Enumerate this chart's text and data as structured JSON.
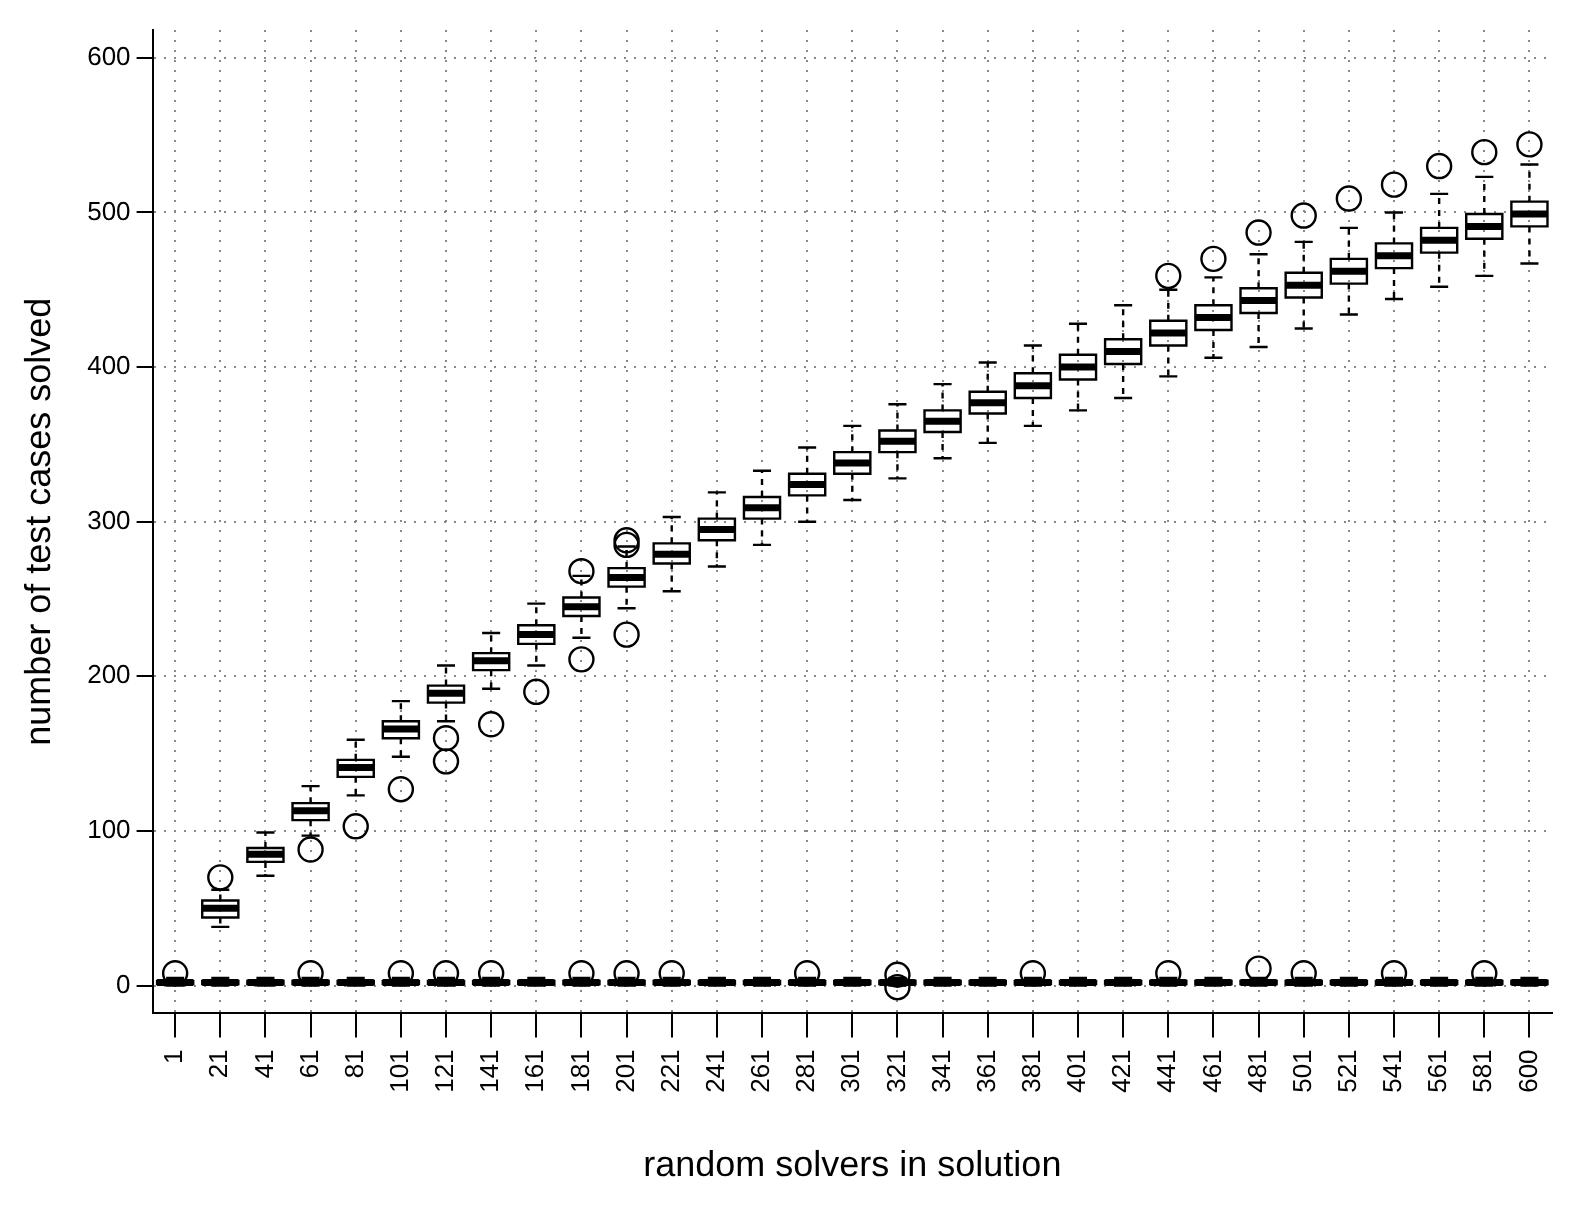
{
  "chart_data": {
    "type": "box",
    "xlabel": "random solvers in solution",
    "ylabel": "number of test cases solved",
    "categories": [
      "1",
      "21",
      "41",
      "61",
      "81",
      "101",
      "121",
      "141",
      "161",
      "181",
      "201",
      "221",
      "241",
      "261",
      "281",
      "301",
      "321",
      "341",
      "361",
      "381",
      "401",
      "421",
      "441",
      "461",
      "481",
      "501",
      "521",
      "541",
      "561",
      "581",
      "600"
    ],
    "ylim": [
      -18,
      618
    ],
    "yticks": [
      0,
      100,
      200,
      300,
      400,
      500,
      600
    ],
    "grid": true,
    "series": [
      {
        "color": "#000000",
        "boxes": [
          {
            "low": 0,
            "q1": 1,
            "median": 2,
            "q3": 3,
            "high": 5,
            "outliers": [
              8
            ]
          },
          {
            "low": 0,
            "q1": 1,
            "median": 2,
            "q3": 3,
            "high": 5
          },
          {
            "low": 0,
            "q1": 1,
            "median": 2,
            "q3": 3,
            "high": 5
          },
          {
            "low": 0,
            "q1": 1,
            "median": 2,
            "q3": 3,
            "high": 5,
            "outliers": [
              8
            ]
          },
          {
            "low": 0,
            "q1": 1,
            "median": 2,
            "q3": 3,
            "high": 5
          },
          {
            "low": 0,
            "q1": 1,
            "median": 2,
            "q3": 3,
            "high": 5,
            "outliers": [
              8
            ]
          },
          {
            "low": 0,
            "q1": 1,
            "median": 2,
            "q3": 3,
            "high": 5,
            "outliers": [
              8
            ]
          },
          {
            "low": 0,
            "q1": 1,
            "median": 2,
            "q3": 3,
            "high": 5,
            "outliers": [
              8
            ]
          },
          {
            "low": 0,
            "q1": 1,
            "median": 2,
            "q3": 3,
            "high": 5
          },
          {
            "low": 0,
            "q1": 1,
            "median": 2,
            "q3": 3,
            "high": 5,
            "outliers": [
              8
            ]
          },
          {
            "low": 0,
            "q1": 1,
            "median": 2,
            "q3": 3,
            "high": 5,
            "outliers": [
              8
            ]
          },
          {
            "low": 0,
            "q1": 1,
            "median": 2,
            "q3": 3,
            "high": 5,
            "outliers": [
              8
            ]
          },
          {
            "low": 0,
            "q1": 1,
            "median": 2,
            "q3": 3,
            "high": 5
          },
          {
            "low": 0,
            "q1": 1,
            "median": 2,
            "q3": 3,
            "high": 5
          },
          {
            "low": 0,
            "q1": 1,
            "median": 2,
            "q3": 3,
            "high": 5,
            "outliers": [
              8
            ]
          },
          {
            "low": 0,
            "q1": 1,
            "median": 2,
            "q3": 3,
            "high": 5
          },
          {
            "low": 0,
            "q1": 1,
            "median": 2,
            "q3": 3,
            "high": 5,
            "outliers": [
              -1,
              7
            ]
          },
          {
            "low": 0,
            "q1": 1,
            "median": 2,
            "q3": 3,
            "high": 5
          },
          {
            "low": 0,
            "q1": 1,
            "median": 2,
            "q3": 3,
            "high": 5
          },
          {
            "low": 0,
            "q1": 1,
            "median": 2,
            "q3": 3,
            "high": 5,
            "outliers": [
              8
            ]
          },
          {
            "low": 0,
            "q1": 1,
            "median": 2,
            "q3": 3,
            "high": 5
          },
          {
            "low": 0,
            "q1": 1,
            "median": 2,
            "q3": 3,
            "high": 5
          },
          {
            "low": 0,
            "q1": 1,
            "median": 2,
            "q3": 3,
            "high": 5,
            "outliers": [
              8
            ]
          },
          {
            "low": 0,
            "q1": 1,
            "median": 2,
            "q3": 3,
            "high": 5
          },
          {
            "low": 0,
            "q1": 1,
            "median": 2,
            "q3": 3,
            "high": 5,
            "outliers": [
              11
            ]
          },
          {
            "low": 0,
            "q1": 1,
            "median": 2,
            "q3": 3,
            "high": 5,
            "outliers": [
              8
            ]
          },
          {
            "low": 0,
            "q1": 1,
            "median": 2,
            "q3": 3,
            "high": 5
          },
          {
            "low": 0,
            "q1": 1,
            "median": 2,
            "q3": 3,
            "high": 5,
            "outliers": [
              8
            ]
          },
          {
            "low": 0,
            "q1": 1,
            "median": 2,
            "q3": 3,
            "high": 5
          },
          {
            "low": 0,
            "q1": 1,
            "median": 2,
            "q3": 3,
            "high": 5,
            "outliers": [
              8
            ]
          },
          {
            "low": 0,
            "q1": 1,
            "median": 2,
            "q3": 3,
            "high": 5
          }
        ]
      },
      {
        "color": "#000000",
        "boxes": [
          null,
          {
            "low": 38,
            "q1": 44,
            "median": 50,
            "q3": 55,
            "high": 62,
            "outliers": [
              70
            ]
          },
          {
            "low": 71,
            "q1": 80,
            "median": 85,
            "q3": 89,
            "high": 99
          },
          {
            "low": 97,
            "q1": 107,
            "median": 113,
            "q3": 118,
            "high": 129,
            "outliers": [
              88
            ]
          },
          {
            "low": 123,
            "q1": 135,
            "median": 141,
            "q3": 146,
            "high": 159,
            "outliers": [
              103
            ]
          },
          {
            "low": 148,
            "q1": 160,
            "median": 166,
            "q3": 171,
            "high": 184,
            "outliers": [
              127
            ]
          },
          {
            "low": 171,
            "q1": 183,
            "median": 189,
            "q3": 194,
            "high": 207,
            "outliers": [
              145,
              160
            ]
          },
          {
            "low": 192,
            "q1": 204,
            "median": 210,
            "q3": 215,
            "high": 228,
            "outliers": [
              169
            ]
          },
          {
            "low": 207,
            "q1": 221,
            "median": 227,
            "q3": 233,
            "high": 247,
            "outliers": [
              190
            ]
          },
          {
            "low": 225,
            "q1": 239,
            "median": 245,
            "q3": 251,
            "high": 265,
            "outliers": [
              211,
              268
            ]
          },
          {
            "low": 244,
            "q1": 258,
            "median": 264,
            "q3": 270,
            "high": 284,
            "outliers": [
              227,
              285,
              288
            ]
          },
          {
            "low": 255,
            "q1": 273,
            "median": 279,
            "q3": 286,
            "high": 303
          },
          {
            "low": 271,
            "q1": 288,
            "median": 295,
            "q3": 302,
            "high": 319
          },
          {
            "low": 285,
            "q1": 302,
            "median": 309,
            "q3": 316,
            "high": 333
          },
          {
            "low": 300,
            "q1": 317,
            "median": 324,
            "q3": 331,
            "high": 348
          },
          {
            "low": 314,
            "q1": 331,
            "median": 338,
            "q3": 345,
            "high": 362
          },
          {
            "low": 328,
            "q1": 345,
            "median": 352,
            "q3": 359,
            "high": 376
          },
          {
            "low": 341,
            "q1": 358,
            "median": 365,
            "q3": 372,
            "high": 389
          },
          {
            "low": 351,
            "q1": 370,
            "median": 377,
            "q3": 384,
            "high": 403
          },
          {
            "low": 362,
            "q1": 380,
            "median": 388,
            "q3": 396,
            "high": 414
          },
          {
            "low": 372,
            "q1": 392,
            "median": 400,
            "q3": 408,
            "high": 428
          },
          {
            "low": 380,
            "q1": 402,
            "median": 410,
            "q3": 418,
            "high": 440
          },
          {
            "low": 394,
            "q1": 414,
            "median": 422,
            "q3": 430,
            "high": 450,
            "outliers": [
              459
            ]
          },
          {
            "low": 406,
            "q1": 424,
            "median": 432,
            "q3": 440,
            "high": 458,
            "outliers": [
              470
            ]
          },
          {
            "low": 413,
            "q1": 435,
            "median": 443,
            "q3": 451,
            "high": 473,
            "outliers": [
              487
            ]
          },
          {
            "low": 425,
            "q1": 445,
            "median": 453,
            "q3": 461,
            "high": 481,
            "outliers": [
              498
            ]
          },
          {
            "low": 434,
            "q1": 454,
            "median": 462,
            "q3": 470,
            "high": 490,
            "outliers": [
              509
            ]
          },
          {
            "low": 444,
            "q1": 464,
            "median": 472,
            "q3": 480,
            "high": 500,
            "outliers": [
              518
            ]
          },
          {
            "low": 452,
            "q1": 474,
            "median": 482,
            "q3": 490,
            "high": 512,
            "outliers": [
              530
            ]
          },
          {
            "low": 459,
            "q1": 483,
            "median": 491,
            "q3": 499,
            "high": 523,
            "outliers": [
              539
            ]
          },
          {
            "low": 467,
            "q1": 491,
            "median": 499,
            "q3": 507,
            "high": 531,
            "outliers": [
              544
            ]
          }
        ]
      }
    ]
  }
}
